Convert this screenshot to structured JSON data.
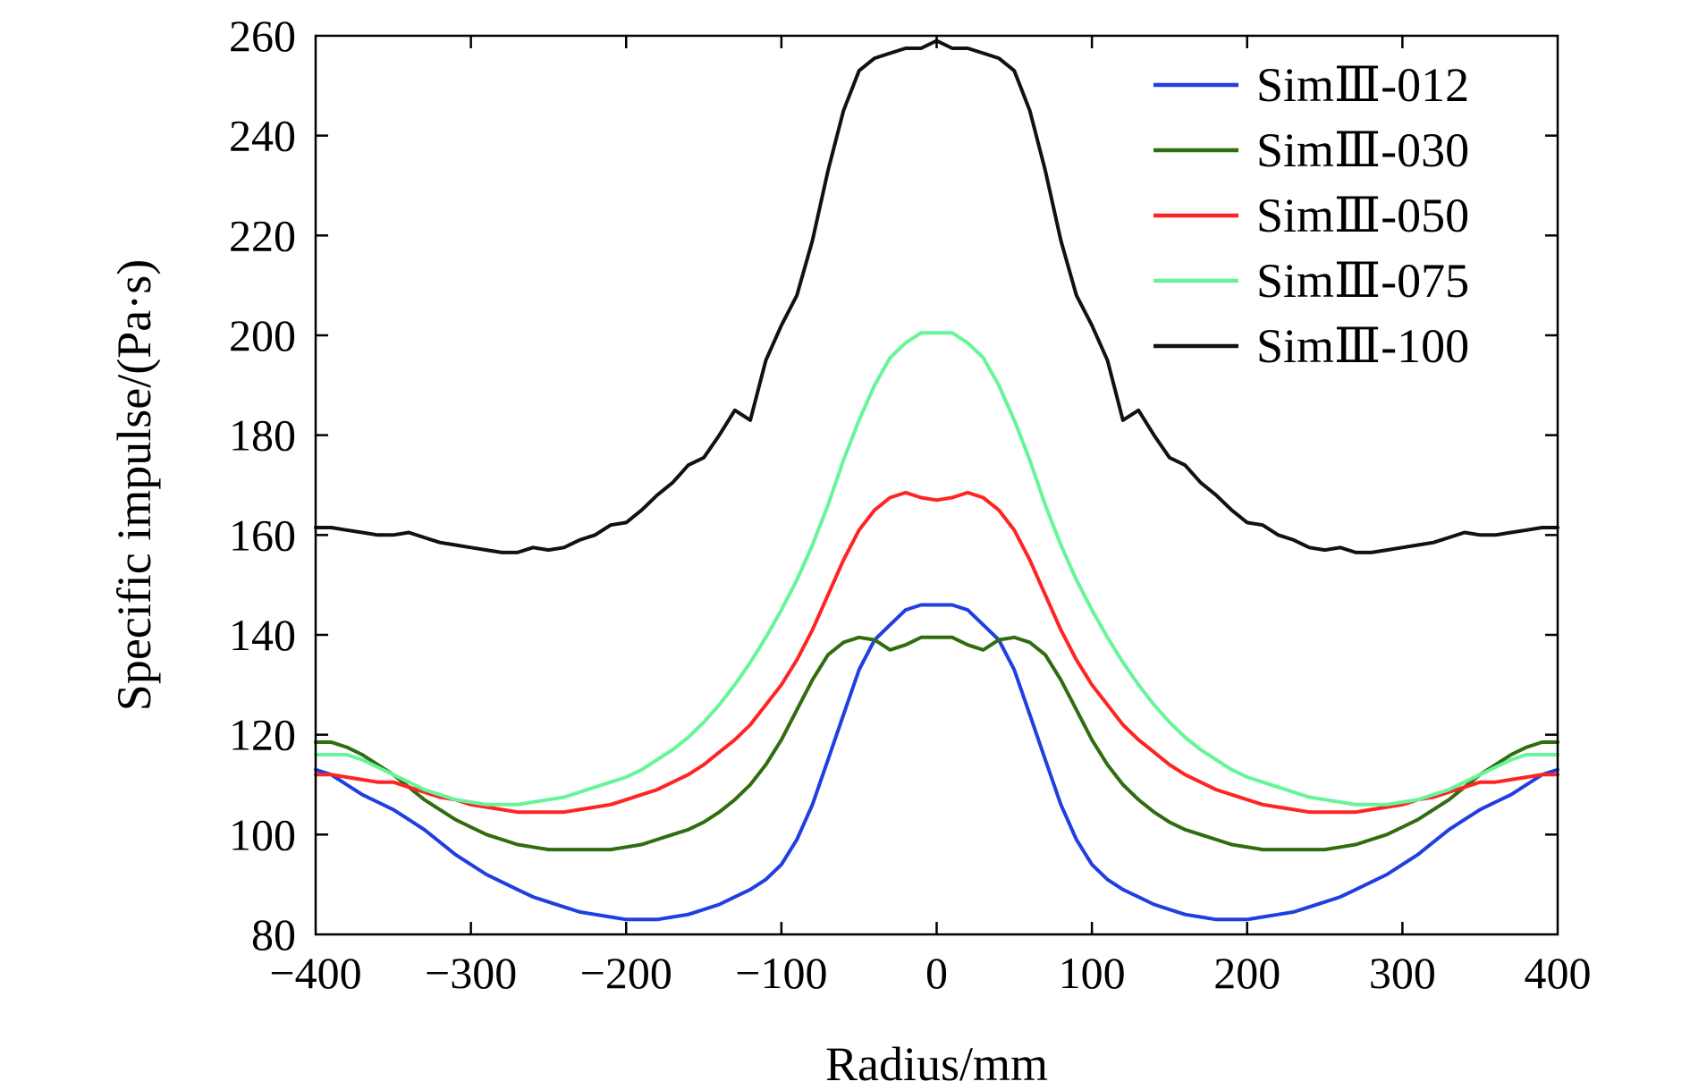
{
  "chart_data": {
    "type": "line",
    "title": "",
    "xlabel": "Radius/mm",
    "ylabel": "Specific impulse/(Pa·s)",
    "xlim": [
      -400,
      400
    ],
    "ylim": [
      80,
      260
    ],
    "xticks": [
      -400,
      -300,
      -200,
      -100,
      0,
      100,
      200,
      300,
      400
    ],
    "xtick_labels": [
      "−400",
      "−300",
      "−200",
      "−100",
      "0",
      "100",
      "200",
      "300",
      "400"
    ],
    "yticks": [
      80,
      100,
      120,
      140,
      160,
      180,
      200,
      220,
      240,
      260
    ],
    "ytick_labels": [
      "80",
      "100",
      "120",
      "140",
      "160",
      "180",
      "200",
      "220",
      "240",
      "260"
    ],
    "grid": false,
    "legend": "top-right",
    "series": [
      {
        "name": "SimⅢ-012",
        "color": "#1f3fe0",
        "points": [
          [
            0,
            146
          ],
          [
            10,
            146
          ],
          [
            20,
            145
          ],
          [
            30,
            142
          ],
          [
            40,
            139
          ],
          [
            50,
            133
          ],
          [
            60,
            124
          ],
          [
            70,
            115
          ],
          [
            80,
            106
          ],
          [
            90,
            99
          ],
          [
            100,
            94
          ],
          [
            110,
            91
          ],
          [
            120,
            89
          ],
          [
            130,
            87.5
          ],
          [
            140,
            86
          ],
          [
            150,
            85
          ],
          [
            160,
            84
          ],
          [
            170,
            83.5
          ],
          [
            180,
            83
          ],
          [
            190,
            83
          ],
          [
            200,
            83
          ],
          [
            210,
            83.5
          ],
          [
            220,
            84
          ],
          [
            230,
            84.5
          ],
          [
            240,
            85.5
          ],
          [
            250,
            86.5
          ],
          [
            260,
            87.5
          ],
          [
            270,
            89
          ],
          [
            280,
            90.5
          ],
          [
            290,
            92
          ],
          [
            300,
            94
          ],
          [
            310,
            96
          ],
          [
            320,
            98.5
          ],
          [
            330,
            101
          ],
          [
            340,
            103
          ],
          [
            350,
            105
          ],
          [
            360,
            106.5
          ],
          [
            370,
            108
          ],
          [
            380,
            110
          ],
          [
            390,
            112
          ],
          [
            400,
            113
          ]
        ]
      },
      {
        "name": "SimⅢ-030",
        "color": "#2f6d0f",
        "points": [
          [
            0,
            139.5
          ],
          [
            10,
            139.5
          ],
          [
            20,
            138
          ],
          [
            30,
            137
          ],
          [
            40,
            139
          ],
          [
            50,
            139.5
          ],
          [
            60,
            138.5
          ],
          [
            70,
            136
          ],
          [
            80,
            131
          ],
          [
            90,
            125
          ],
          [
            100,
            119
          ],
          [
            110,
            114
          ],
          [
            120,
            110
          ],
          [
            130,
            107
          ],
          [
            140,
            104.5
          ],
          [
            150,
            102.5
          ],
          [
            160,
            101
          ],
          [
            170,
            100
          ],
          [
            180,
            99
          ],
          [
            190,
            98
          ],
          [
            200,
            97.5
          ],
          [
            210,
            97
          ],
          [
            220,
            97
          ],
          [
            230,
            97
          ],
          [
            240,
            97
          ],
          [
            250,
            97
          ],
          [
            260,
            97.5
          ],
          [
            270,
            98
          ],
          [
            280,
            99
          ],
          [
            290,
            100
          ],
          [
            300,
            101.5
          ],
          [
            310,
            103
          ],
          [
            320,
            105
          ],
          [
            330,
            107
          ],
          [
            340,
            109.5
          ],
          [
            350,
            112
          ],
          [
            360,
            114
          ],
          [
            370,
            116
          ],
          [
            380,
            117.5
          ],
          [
            390,
            118.5
          ],
          [
            400,
            118.5
          ]
        ]
      },
      {
        "name": "SimⅢ-050",
        "color": "#ff2424",
        "points": [
          [
            0,
            167
          ],
          [
            10,
            167.5
          ],
          [
            20,
            168.5
          ],
          [
            30,
            167.5
          ],
          [
            40,
            165
          ],
          [
            50,
            161
          ],
          [
            60,
            155
          ],
          [
            70,
            148
          ],
          [
            80,
            141
          ],
          [
            90,
            135
          ],
          [
            100,
            130
          ],
          [
            110,
            126
          ],
          [
            120,
            122
          ],
          [
            130,
            119
          ],
          [
            140,
            116.5
          ],
          [
            150,
            114
          ],
          [
            160,
            112
          ],
          [
            170,
            110.5
          ],
          [
            180,
            109
          ],
          [
            190,
            108
          ],
          [
            200,
            107
          ],
          [
            210,
            106
          ],
          [
            220,
            105.5
          ],
          [
            230,
            105
          ],
          [
            240,
            104.5
          ],
          [
            250,
            104.5
          ],
          [
            260,
            104.5
          ],
          [
            270,
            104.5
          ],
          [
            280,
            105
          ],
          [
            290,
            105.5
          ],
          [
            300,
            106
          ],
          [
            310,
            107
          ],
          [
            320,
            107.5
          ],
          [
            330,
            108.5
          ],
          [
            340,
            109.5
          ],
          [
            350,
            110.5
          ],
          [
            360,
            110.5
          ],
          [
            370,
            111
          ],
          [
            380,
            111.5
          ],
          [
            390,
            112
          ],
          [
            400,
            112
          ]
        ]
      },
      {
        "name": "SimⅢ-075",
        "color": "#66f599",
        "points": [
          [
            0,
            200.5
          ],
          [
            10,
            200.5
          ],
          [
            20,
            198.5
          ],
          [
            30,
            195.5
          ],
          [
            40,
            190
          ],
          [
            50,
            183
          ],
          [
            60,
            175
          ],
          [
            70,
            166
          ],
          [
            80,
            158
          ],
          [
            90,
            151
          ],
          [
            100,
            145
          ],
          [
            110,
            139.5
          ],
          [
            120,
            134.5
          ],
          [
            130,
            130
          ],
          [
            140,
            126
          ],
          [
            150,
            122.5
          ],
          [
            160,
            119.5
          ],
          [
            170,
            117
          ],
          [
            180,
            115
          ],
          [
            190,
            113
          ],
          [
            200,
            111.5
          ],
          [
            210,
            110.5
          ],
          [
            220,
            109.5
          ],
          [
            230,
            108.5
          ],
          [
            240,
            107.5
          ],
          [
            250,
            107
          ],
          [
            260,
            106.5
          ],
          [
            270,
            106
          ],
          [
            280,
            106
          ],
          [
            290,
            106
          ],
          [
            300,
            106.5
          ],
          [
            310,
            107
          ],
          [
            320,
            108
          ],
          [
            330,
            109
          ],
          [
            340,
            110.5
          ],
          [
            350,
            112
          ],
          [
            360,
            113.5
          ],
          [
            370,
            115
          ],
          [
            380,
            116
          ],
          [
            390,
            116
          ],
          [
            400,
            116
          ]
        ]
      },
      {
        "name": "SimⅢ-100",
        "color": "#111111",
        "points": [
          [
            0,
            259
          ],
          [
            10,
            257.5
          ],
          [
            20,
            257.5
          ],
          [
            30,
            256.5
          ],
          [
            40,
            255.5
          ],
          [
            50,
            253
          ],
          [
            60,
            245
          ],
          [
            70,
            233
          ],
          [
            80,
            219
          ],
          [
            90,
            208
          ],
          [
            100,
            202
          ],
          [
            110,
            195
          ],
          [
            120,
            183
          ],
          [
            130,
            185
          ],
          [
            140,
            180
          ],
          [
            150,
            175.5
          ],
          [
            160,
            174
          ],
          [
            170,
            170.5
          ],
          [
            180,
            168
          ],
          [
            190,
            165
          ],
          [
            200,
            162.5
          ],
          [
            210,
            162
          ],
          [
            220,
            160
          ],
          [
            230,
            159
          ],
          [
            240,
            157.5
          ],
          [
            250,
            157
          ],
          [
            260,
            157.5
          ],
          [
            270,
            156.5
          ],
          [
            280,
            156.5
          ],
          [
            290,
            157
          ],
          [
            300,
            157.5
          ],
          [
            310,
            158
          ],
          [
            320,
            158.5
          ],
          [
            330,
            159.5
          ],
          [
            340,
            160.5
          ],
          [
            350,
            160
          ],
          [
            360,
            160
          ],
          [
            370,
            160.5
          ],
          [
            380,
            161
          ],
          [
            390,
            161.5
          ],
          [
            400,
            161.5
          ]
        ]
      }
    ]
  }
}
